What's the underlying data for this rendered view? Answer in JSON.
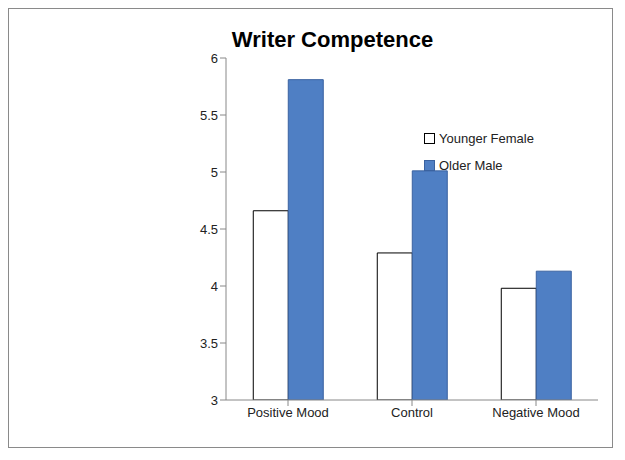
{
  "chart_data": {
    "type": "bar",
    "title": "Writer Competence",
    "categories": [
      "Positive Mood",
      "Control",
      "Negative Mood"
    ],
    "series": [
      {
        "name": "Younger Female",
        "color": "#ffffff",
        "values": [
          4.66,
          4.29,
          3.98
        ]
      },
      {
        "name": "Older Male",
        "color": "#4f7fc4",
        "values": [
          5.81,
          5.01,
          4.13
        ]
      }
    ],
    "ylim": [
      3,
      6
    ],
    "yticks": [
      3,
      3.5,
      4,
      4.5,
      5,
      5.5,
      6
    ],
    "grid": false,
    "legend": "upper right"
  }
}
